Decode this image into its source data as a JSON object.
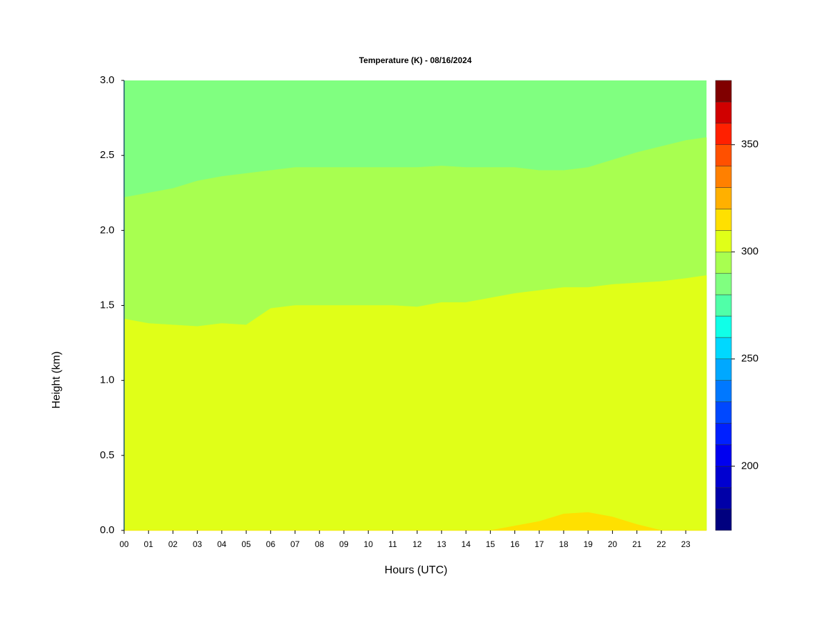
{
  "chart_data": {
    "type": "contour",
    "title": "Temperature (K) - 08/16/2024",
    "xlabel": "Hours (UTC)",
    "ylabel": "Height (km)",
    "xlim": [
      0,
      23.85
    ],
    "ylim": [
      0,
      3
    ],
    "xticks": [
      {
        "value": 0,
        "label": "00"
      },
      {
        "value": 1,
        "label": "01"
      },
      {
        "value": 2,
        "label": "02"
      },
      {
        "value": 3,
        "label": "03"
      },
      {
        "value": 4,
        "label": "04"
      },
      {
        "value": 5,
        "label": "05"
      },
      {
        "value": 6,
        "label": "06"
      },
      {
        "value": 7,
        "label": "07"
      },
      {
        "value": 8,
        "label": "08"
      },
      {
        "value": 9,
        "label": "09"
      },
      {
        "value": 10,
        "label": "10"
      },
      {
        "value": 11,
        "label": "11"
      },
      {
        "value": 12,
        "label": "12"
      },
      {
        "value": 13,
        "label": "13"
      },
      {
        "value": 14,
        "label": "14"
      },
      {
        "value": 15,
        "label": "15"
      },
      {
        "value": 16,
        "label": "16"
      },
      {
        "value": 17,
        "label": "17"
      },
      {
        "value": 18,
        "label": "18"
      },
      {
        "value": 19,
        "label": "19"
      },
      {
        "value": 20,
        "label": "20"
      },
      {
        "value": 21,
        "label": "21"
      },
      {
        "value": 22,
        "label": "22"
      },
      {
        "value": 23,
        "label": "23"
      }
    ],
    "yticks": [
      {
        "value": 0,
        "label": "0.0"
      },
      {
        "value": 0.5,
        "label": "0.5"
      },
      {
        "value": 1,
        "label": "1.0"
      },
      {
        "value": 1.5,
        "label": "1.5"
      },
      {
        "value": 2,
        "label": "2.0"
      },
      {
        "value": 2.5,
        "label": "2.5"
      },
      {
        "value": 3,
        "label": "3.0"
      }
    ],
    "x": [
      0,
      1,
      2,
      3,
      4,
      5,
      6,
      7,
      8,
      9,
      10,
      11,
      12,
      13,
      14,
      15,
      16,
      17,
      18,
      19,
      20,
      21,
      22,
      23,
      23.85
    ],
    "contours": [
      {
        "level": 290,
        "heights": [
          2.22,
          2.25,
          2.28,
          2.33,
          2.36,
          2.38,
          2.4,
          2.42,
          2.42,
          2.42,
          2.42,
          2.42,
          2.42,
          2.43,
          2.42,
          2.42,
          2.42,
          2.4,
          2.4,
          2.42,
          2.47,
          2.52,
          2.56,
          2.6,
          2.62
        ]
      },
      {
        "level": 300,
        "heights": [
          1.41,
          1.38,
          1.37,
          1.36,
          1.38,
          1.37,
          1.48,
          1.5,
          1.5,
          1.5,
          1.5,
          1.5,
          1.49,
          1.52,
          1.52,
          1.55,
          1.58,
          1.6,
          1.62,
          1.62,
          1.64,
          1.65,
          1.66,
          1.68,
          1.7
        ]
      },
      {
        "level": 310,
        "heights": [
          0,
          0,
          0,
          0,
          0,
          0,
          0,
          0,
          0,
          0,
          0,
          0,
          0,
          0,
          0,
          0,
          0.03,
          0.06,
          0.11,
          0.12,
          0.09,
          0.04,
          0,
          0,
          0
        ]
      }
    ],
    "colorbar": {
      "levels": [
        170,
        180,
        190,
        200,
        210,
        220,
        230,
        240,
        250,
        260,
        270,
        280,
        290,
        300,
        310,
        320,
        330,
        340,
        350,
        360,
        370,
        380
      ],
      "colors": [
        "#00007f",
        "#0000a8",
        "#0000d0",
        "#0000f0",
        "#0020ff",
        "#0048ff",
        "#0078ff",
        "#00a8ff",
        "#00d8ff",
        "#10ffe8",
        "#50ffa8",
        "#80ff80",
        "#a8ff50",
        "#e0ff18",
        "#ffe000",
        "#ffb000",
        "#ff8000",
        "#ff5000",
        "#ff2000",
        "#d00000",
        "#800000"
      ],
      "ticks": [
        200,
        250,
        300,
        350
      ]
    }
  }
}
